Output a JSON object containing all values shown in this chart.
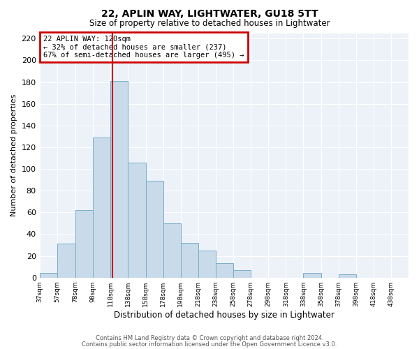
{
  "title": "22, APLIN WAY, LIGHTWATER, GU18 5TT",
  "subtitle": "Size of property relative to detached houses in Lightwater",
  "xlabel": "Distribution of detached houses by size in Lightwater",
  "ylabel": "Number of detached properties",
  "bar_color": "#c9daea",
  "bar_edge_color": "#7aaec8",
  "bg_color": "#edf2f9",
  "grid_color": "#ffffff",
  "vline_x": 120,
  "vline_color": "#cc0000",
  "annotation_title": "22 APLIN WAY: 120sqm",
  "annotation_line1": "← 32% of detached houses are smaller (237)",
  "annotation_line2": "67% of semi-detached houses are larger (495) →",
  "annotation_box_color": "#cc0000",
  "bins": [
    37,
    57,
    78,
    98,
    118,
    138,
    158,
    178,
    198,
    218,
    238,
    258,
    278,
    298,
    318,
    338,
    358,
    378,
    398,
    418,
    438,
    458
  ],
  "heights": [
    4,
    31,
    62,
    129,
    181,
    106,
    89,
    50,
    32,
    25,
    13,
    7,
    0,
    0,
    0,
    4,
    0,
    3,
    0,
    0,
    0
  ],
  "ylim": [
    0,
    225
  ],
  "yticks": [
    0,
    20,
    40,
    60,
    80,
    100,
    120,
    140,
    160,
    180,
    200,
    220
  ],
  "xtick_labels": [
    "37sqm",
    "57sqm",
    "78sqm",
    "98sqm",
    "118sqm",
    "138sqm",
    "158sqm",
    "178sqm",
    "198sqm",
    "218sqm",
    "238sqm",
    "258sqm",
    "278sqm",
    "298sqm",
    "318sqm",
    "338sqm",
    "358sqm",
    "378sqm",
    "398sqm",
    "418sqm",
    "438sqm"
  ],
  "footer1": "Contains HM Land Registry data © Crown copyright and database right 2024.",
  "footer2": "Contains public sector information licensed under the Open Government Licence v3.0."
}
